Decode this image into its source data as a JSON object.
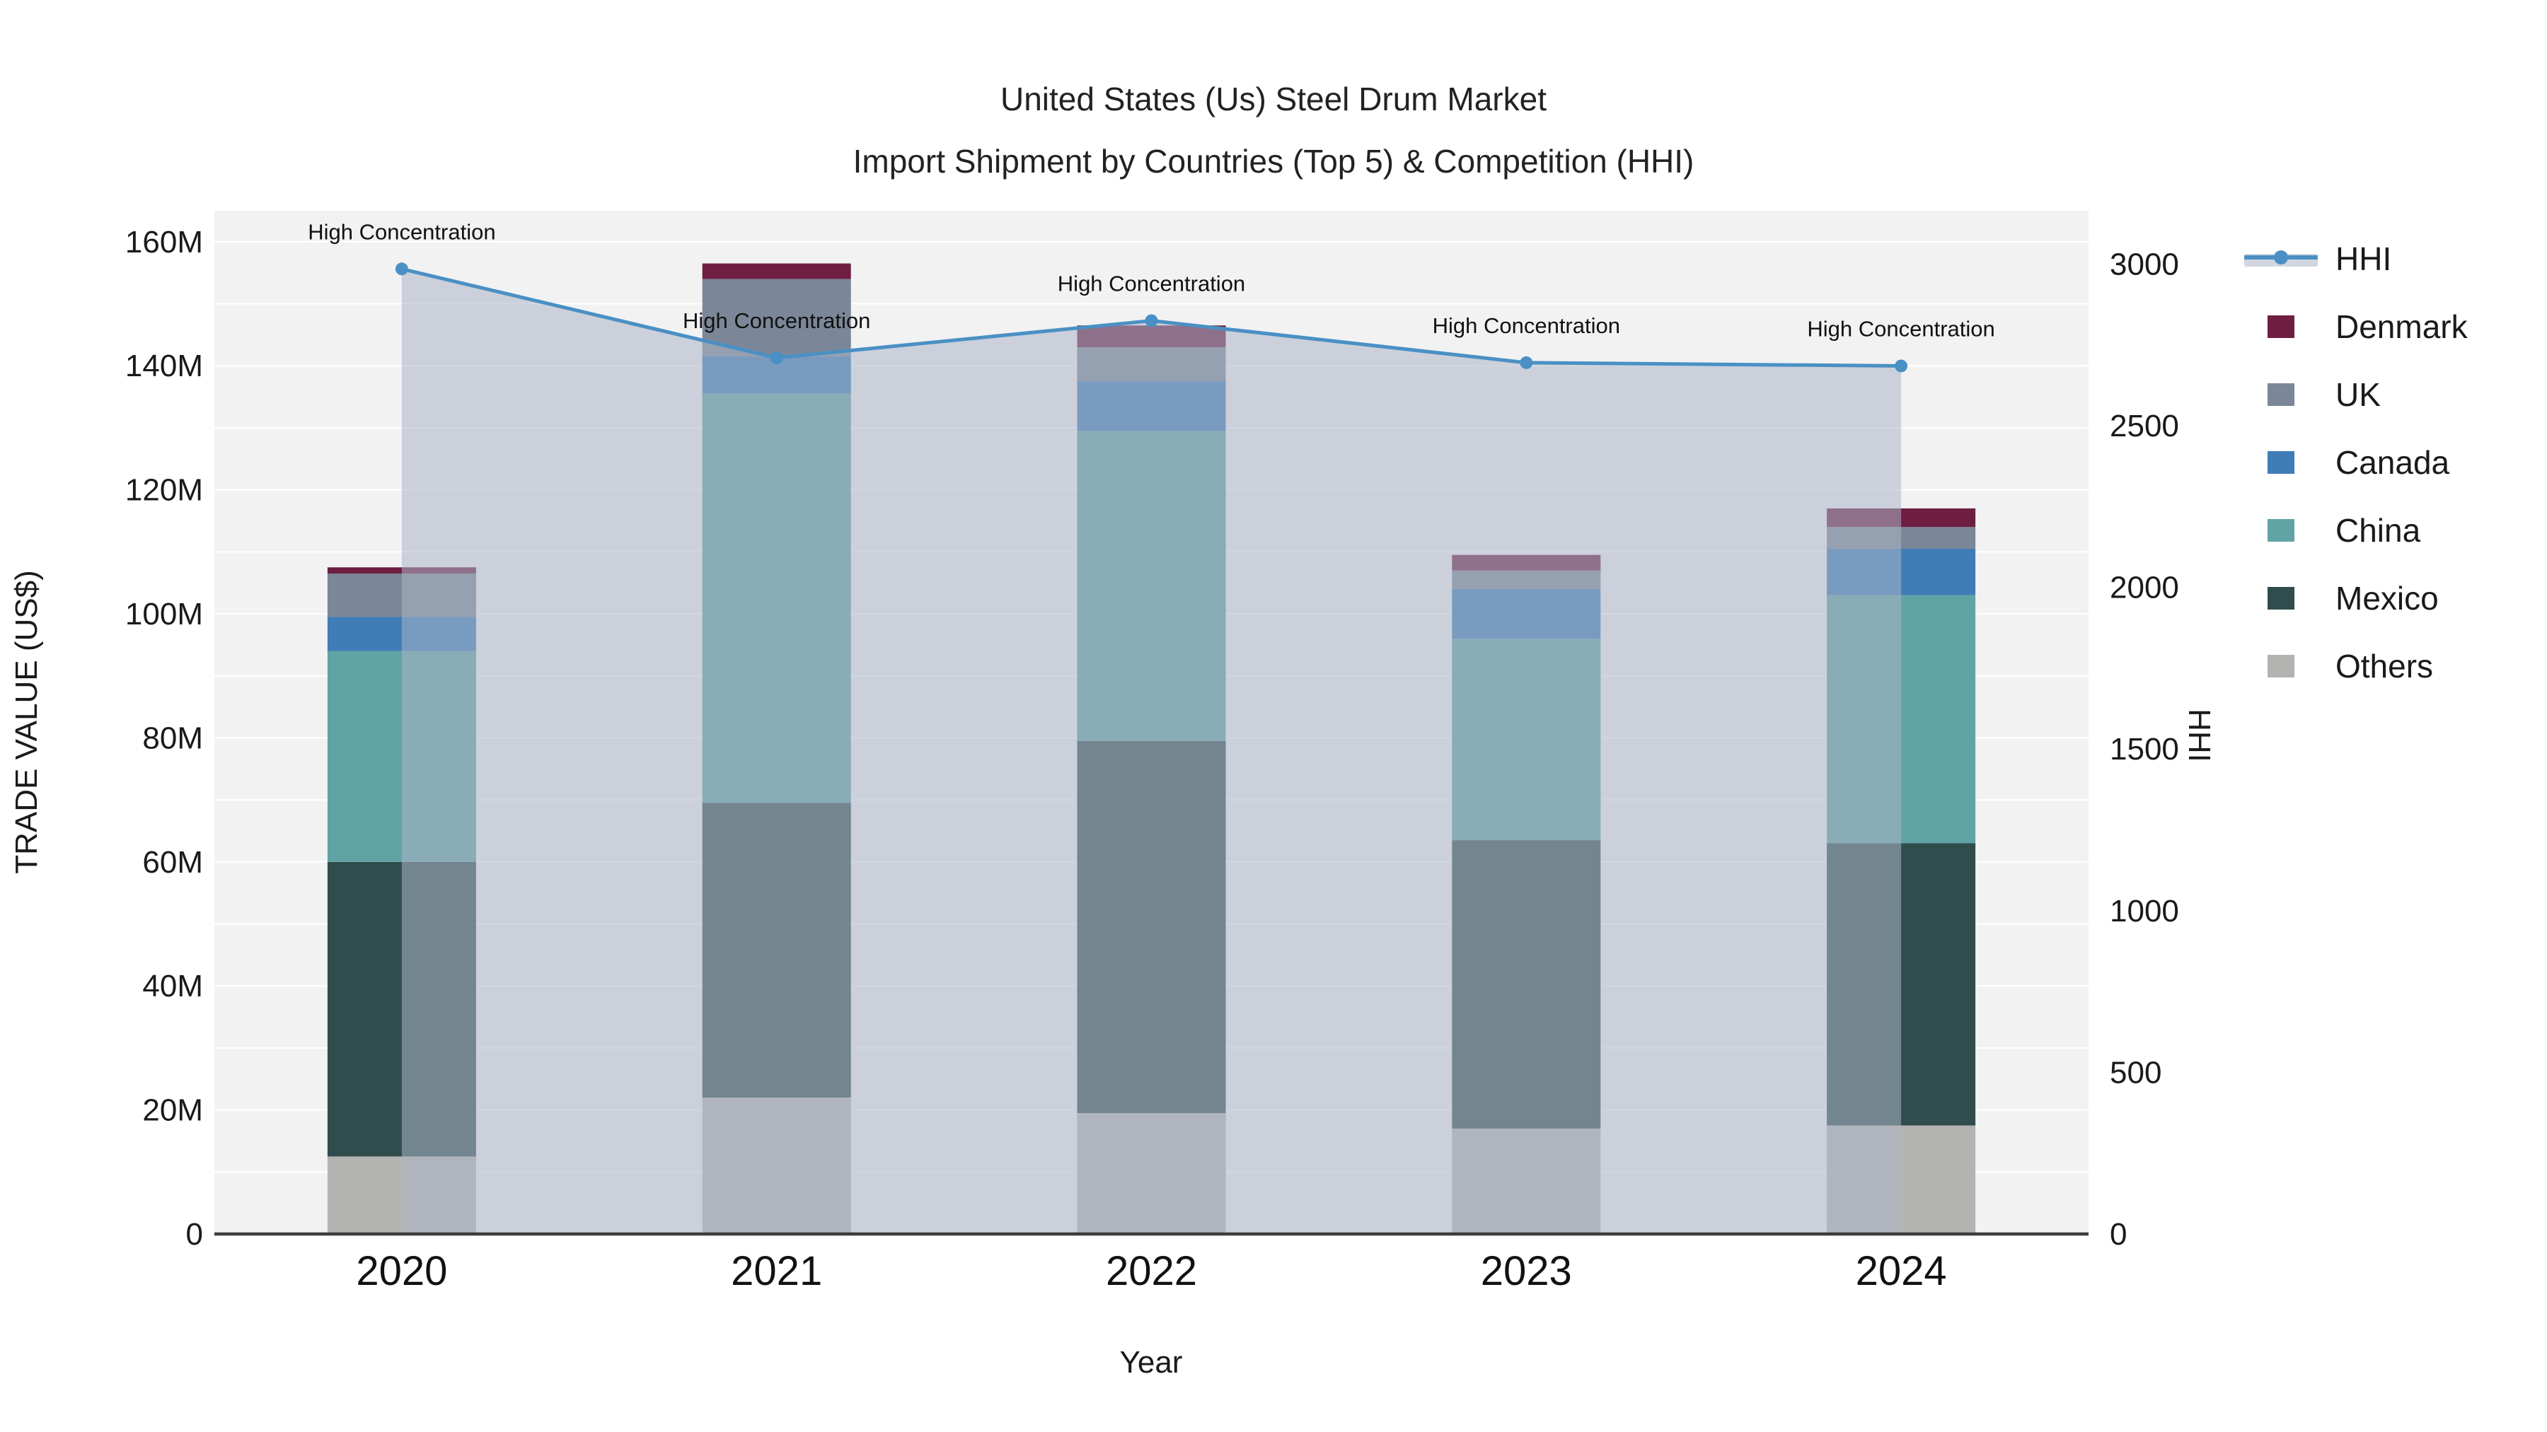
{
  "title": {
    "line1": "United States (Us) Steel Drum Market",
    "line2": "Import Shipment by Countries (Top 5) & Competition (HHI)"
  },
  "axes": {
    "x_title": "Year",
    "y_left_title": "TRADE VALUE (US$)",
    "y_right_title": "HHI",
    "y_left_ticks": [
      {
        "v": 0,
        "label": "0"
      },
      {
        "v": 20,
        "label": "20M"
      },
      {
        "v": 40,
        "label": "40M"
      },
      {
        "v": 60,
        "label": "60M"
      },
      {
        "v": 80,
        "label": "80M"
      },
      {
        "v": 100,
        "label": "100M"
      },
      {
        "v": 120,
        "label": "120M"
      },
      {
        "v": 140,
        "label": "140M"
      },
      {
        "v": 160,
        "label": "160M"
      }
    ],
    "y_right_ticks": [
      {
        "v": 0,
        "label": "0"
      },
      {
        "v": 500,
        "label": "500"
      },
      {
        "v": 1000,
        "label": "1000"
      },
      {
        "v": 1500,
        "label": "1500"
      },
      {
        "v": 2000,
        "label": "2000"
      },
      {
        "v": 2500,
        "label": "2500"
      },
      {
        "v": 3000,
        "label": "3000"
      }
    ]
  },
  "legend": [
    {
      "label": "HHI",
      "type": "line",
      "color": "#4a90c4",
      "band": "rgba(171,181,199,0.55)"
    },
    {
      "label": "Denmark",
      "type": "swatch",
      "color": "#6e1e41"
    },
    {
      "label": "UK",
      "type": "swatch",
      "color": "#7b8798"
    },
    {
      "label": "Canada",
      "type": "swatch",
      "color": "#3f7cb8"
    },
    {
      "label": "China",
      "type": "swatch",
      "color": "#61a3a4"
    },
    {
      "label": "Mexico",
      "type": "swatch",
      "color": "#2f4d4c"
    },
    {
      "label": "Others",
      "type": "swatch",
      "color": "#b3b3b1"
    }
  ],
  "chart_data": {
    "type": "bar",
    "subtype": "stacked-bar-with-line",
    "categories": [
      "2020",
      "2021",
      "2022",
      "2023",
      "2024"
    ],
    "bar_value_unit": "M US$ (trade value)",
    "series": [
      {
        "name": "Others",
        "color": "#b3b3b1",
        "values": [
          12.5,
          22.0,
          19.5,
          17.0,
          17.5
        ]
      },
      {
        "name": "Mexico",
        "color": "#2f4d4c",
        "values": [
          47.5,
          47.5,
          60.0,
          46.5,
          45.5
        ]
      },
      {
        "name": "China",
        "color": "#61a3a4",
        "values": [
          34.0,
          66.0,
          50.0,
          32.5,
          40.0
        ]
      },
      {
        "name": "Canada",
        "color": "#3f7cb8",
        "values": [
          5.5,
          6.0,
          8.0,
          8.0,
          7.5
        ]
      },
      {
        "name": "UK",
        "color": "#7b8798",
        "values": [
          7.0,
          12.5,
          5.5,
          3.0,
          3.5
        ]
      },
      {
        "name": "Denmark",
        "color": "#6e1e41",
        "values": [
          1.0,
          2.5,
          3.5,
          2.5,
          3.0
        ]
      }
    ],
    "stack_totals": [
      107.5,
      156.5,
      146.5,
      109.5,
      117.0
    ],
    "line_series": {
      "name": "HHI",
      "axis": "right",
      "color": "#4a90c4",
      "area_fill": "rgba(171,181,199,0.55)",
      "values": [
        2985,
        2710,
        2825,
        2695,
        2685
      ],
      "point_annotations": [
        "High Concentration",
        "High Concentration",
        "High Concentration",
        "High Concentration",
        "High Concentration"
      ]
    },
    "y_left": {
      "min": 0,
      "max": 165,
      "gridline_step": 10,
      "label": "TRADE VALUE (US$)"
    },
    "y_right": {
      "min": 0,
      "max": 3165,
      "label": "HHI"
    },
    "xlabel": "Year",
    "legend_position": "right",
    "grid": "horizontal-only",
    "plot_bg": "#f2f2f3",
    "gridline_color": "#ffffff",
    "axis_line_color": "#3c3c3c",
    "annotation_color": "#111111"
  }
}
